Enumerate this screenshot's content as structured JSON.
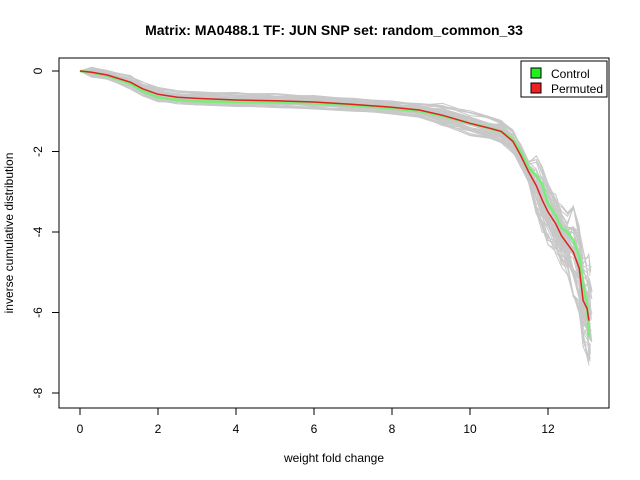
{
  "chart_data": {
    "type": "line",
    "title": "Matrix: MA0488.1 TF: JUN SNP set: random_common_33",
    "xlabel": "weight fold change",
    "ylabel": "inverse cumulative distribution",
    "xlim": [
      0,
      13.1
    ],
    "ylim": [
      -8,
      0
    ],
    "xticks": [
      0,
      2,
      4,
      6,
      8,
      10,
      12
    ],
    "yticks": [
      0,
      -2,
      -4,
      -6,
      -8
    ],
    "legend": {
      "position": "top-right",
      "entries": [
        {
          "label": "Control",
          "color": "#22ee22"
        },
        {
          "label": "Permuted",
          "color": "#ee2222"
        }
      ]
    },
    "background_series_color": "#c8c8c8",
    "series": [
      {
        "name": "Control",
        "color": "#77ee77",
        "points": [
          [
            0,
            0
          ],
          [
            0.3,
            -0.04
          ],
          [
            0.7,
            -0.12
          ],
          [
            1.3,
            -0.32
          ],
          [
            1.6,
            -0.5
          ],
          [
            2.0,
            -0.65
          ],
          [
            2.5,
            -0.72
          ],
          [
            3,
            -0.75
          ],
          [
            4,
            -0.77
          ],
          [
            5,
            -0.78
          ],
          [
            6,
            -0.8
          ],
          [
            7,
            -0.86
          ],
          [
            8,
            -0.93
          ],
          [
            8.7,
            -1.0
          ],
          [
            9.3,
            -1.12
          ],
          [
            10,
            -1.3
          ],
          [
            10.5,
            -1.42
          ],
          [
            10.8,
            -1.5
          ],
          [
            11.1,
            -1.7
          ],
          [
            11.3,
            -2.0
          ],
          [
            11.5,
            -2.4
          ],
          [
            11.7,
            -2.6
          ],
          [
            11.85,
            -2.8
          ],
          [
            12.0,
            -3.3
          ],
          [
            12.2,
            -3.6
          ],
          [
            12.35,
            -3.9
          ],
          [
            12.5,
            -4.0
          ],
          [
            12.65,
            -4.2
          ],
          [
            12.8,
            -4.6
          ],
          [
            12.9,
            -5.3
          ],
          [
            13.0,
            -5.8
          ],
          [
            13.05,
            -6.6
          ]
        ]
      },
      {
        "name": "Permuted",
        "color": "#dd2222",
        "points": [
          [
            0,
            0
          ],
          [
            0.3,
            -0.03
          ],
          [
            0.7,
            -0.1
          ],
          [
            1.3,
            -0.28
          ],
          [
            1.6,
            -0.44
          ],
          [
            2.0,
            -0.58
          ],
          [
            2.5,
            -0.65
          ],
          [
            3,
            -0.68
          ],
          [
            4,
            -0.72
          ],
          [
            5,
            -0.74
          ],
          [
            6,
            -0.77
          ],
          [
            7,
            -0.83
          ],
          [
            8,
            -0.9
          ],
          [
            8.7,
            -0.97
          ],
          [
            9.3,
            -1.1
          ],
          [
            10,
            -1.3
          ],
          [
            10.5,
            -1.42
          ],
          [
            10.8,
            -1.5
          ],
          [
            11.1,
            -1.75
          ],
          [
            11.3,
            -2.1
          ],
          [
            11.5,
            -2.5
          ],
          [
            11.7,
            -2.85
          ],
          [
            11.85,
            -3.2
          ],
          [
            12.0,
            -3.5
          ],
          [
            12.2,
            -3.8
          ],
          [
            12.35,
            -4.1
          ],
          [
            12.5,
            -4.3
          ],
          [
            12.65,
            -4.5
          ],
          [
            12.8,
            -4.9
          ],
          [
            12.9,
            -5.7
          ],
          [
            13.0,
            -5.9
          ],
          [
            13.05,
            -6.2
          ]
        ]
      }
    ]
  }
}
